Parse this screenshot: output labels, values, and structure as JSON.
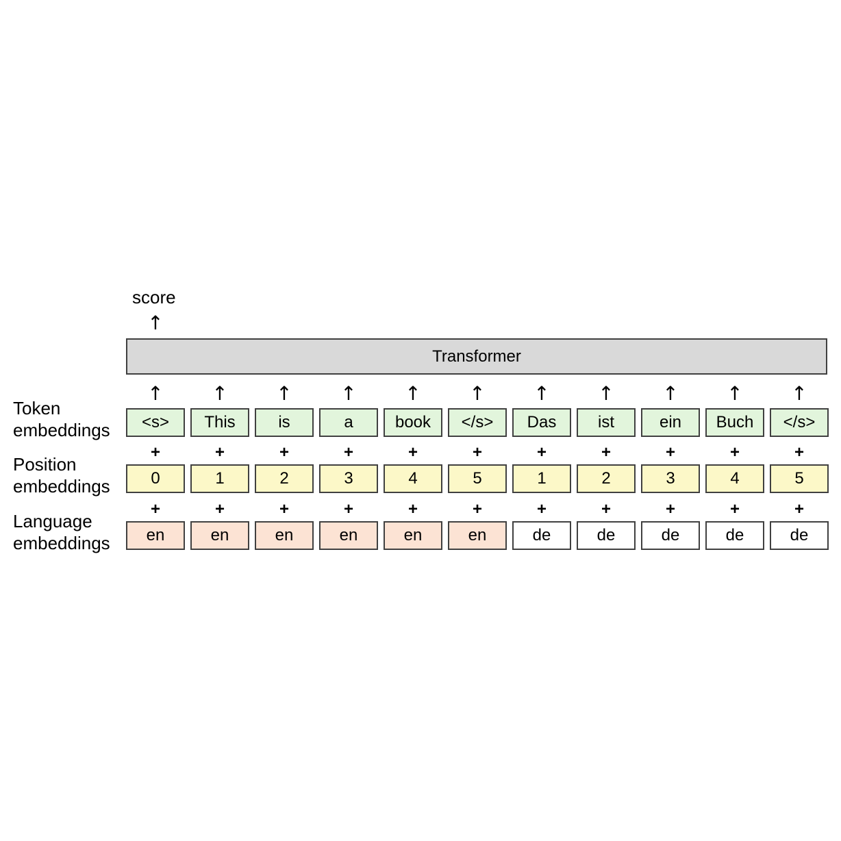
{
  "score_label": "score",
  "transformer_label": "Transformer",
  "labels": {
    "token": [
      "Token",
      "embeddings"
    ],
    "position": [
      "Position",
      "embeddings"
    ],
    "language": [
      "Language",
      "embeddings"
    ]
  },
  "tokens": [
    "<s>",
    "This",
    "is",
    "a",
    "book",
    "</s>",
    "Das",
    "ist",
    "ein",
    "Buch",
    "</s>"
  ],
  "positions": [
    "0",
    "1",
    "2",
    "3",
    "4",
    "5",
    "1",
    "2",
    "3",
    "4",
    "5"
  ],
  "languages": [
    "en",
    "en",
    "en",
    "en",
    "en",
    "en",
    "de",
    "de",
    "de",
    "de",
    "de"
  ],
  "arrow_glyph": "↑",
  "plus_glyph": "+",
  "colors": {
    "transformer_fill": "#d9d9d9",
    "token_fill": "#e2f5dc",
    "position_fill": "#fcf8c8",
    "language_en_fill": "#fce3d4",
    "language_de_fill": "#ffffff"
  }
}
